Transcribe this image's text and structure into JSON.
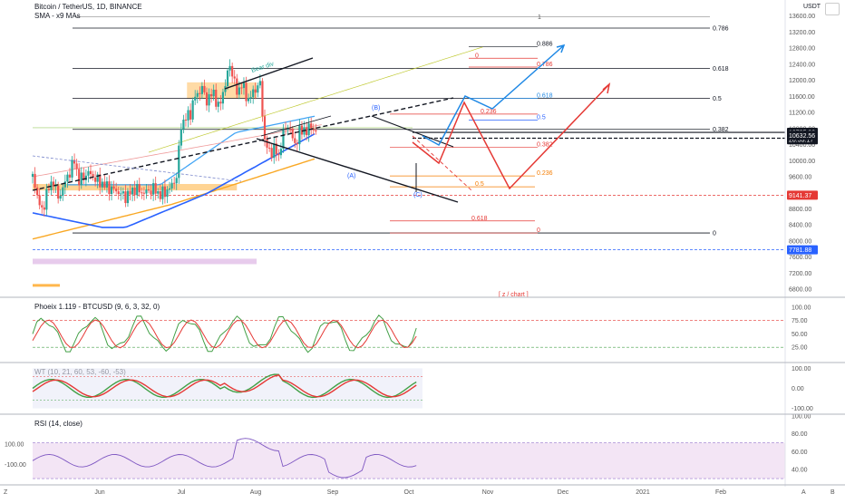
{
  "header": {
    "title": "Bitcoin / TetherUS, 1D, BINANCE",
    "indicator": "SMA - x9 MAs",
    "currency": "USDT"
  },
  "colors": {
    "up": "#26a69a",
    "down": "#ef5350",
    "sma_blue": "#2962ff",
    "sma_light": "#42a5f5",
    "sma_orange": "#f9a825",
    "fib_red": "#e53935",
    "fib_blue": "#1e88e5",
    "fib_orange": "#f57c00",
    "range_band": "#ffcc80",
    "pink_band": "#e1bee7",
    "rsi_bg": "#f3e5f5"
  },
  "chart_data": [
    {
      "type": "candlestick",
      "title": "Bitcoin / TetherUS, 1D, BINANCE",
      "x_ticks": [
        "Jun",
        "Jul",
        "Aug",
        "Sep",
        "Oct",
        "Nov",
        "Dec",
        "2021",
        "Feb"
      ],
      "y_ticks": [
        6800,
        7200,
        7600,
        8000,
        8400,
        8800,
        9200,
        9600,
        10000,
        10400,
        10800,
        11200,
        11600,
        12000,
        12400,
        12800,
        13200,
        13600
      ],
      "ylim": [
        6600,
        14000
      ],
      "price_labels": [
        {
          "text": "10705.90",
          "value": 10705.9,
          "color": "#131722"
        },
        {
          "text": "20:53:17",
          "value": 10520,
          "color": "#131722"
        },
        {
          "text": "10632.56",
          "value": 10632.56,
          "color": "#131722"
        },
        {
          "text": "9141.37",
          "value": 9141.37,
          "color": "#e53935"
        },
        {
          "text": "7781.88",
          "value": 7781.88,
          "color": "#2962ff"
        }
      ],
      "fib_black": [
        {
          "label": "0.886",
          "value": 14150
        },
        {
          "label": "1",
          "value": 13580
        },
        {
          "label": "0.786",
          "value": 13300
        },
        {
          "label": "0.618",
          "value": 12300
        },
        {
          "label": "0.5",
          "value": 11550
        },
        {
          "label": "0.382",
          "value": 10780
        },
        {
          "label": "0",
          "value": 8200
        }
      ],
      "fib_projection": [
        {
          "label": "0.886",
          "value": 12840
        },
        {
          "label": "0",
          "value": 12550
        },
        {
          "label": "0.786",
          "value": 12330
        },
        {
          "label": "0.618",
          "value": 11550
        },
        {
          "label": "0.5",
          "value": 11010
        },
        {
          "label": "0.236",
          "value": 11160
        },
        {
          "label": "0.382",
          "value": 10330
        },
        {
          "label": "0.236",
          "value": 9620
        },
        {
          "label": "0.5",
          "value": 9350
        },
        {
          "label": "0.618",
          "value": 8500
        },
        {
          "label": "0",
          "value": 8200
        }
      ],
      "annotations": [
        "Bear div",
        "(B)",
        "(A)",
        "(C)",
        "[ z / chart ]"
      ]
    },
    {
      "type": "line",
      "title": "Phoeix 1.119 - BTCUSD (9, 6, 3, 32, 0)",
      "y_ticks": [
        100,
        75,
        50,
        25
      ],
      "ylim": [
        0,
        115
      ]
    },
    {
      "type": "line",
      "title": "WT (10, 21, 60, 53, -60, -53)",
      "y_ticks": [
        100,
        0,
        -100
      ],
      "ylim": [
        -120,
        120
      ]
    },
    {
      "type": "line",
      "title": "RSI (14, close)",
      "y_ticks": [
        100,
        80,
        60,
        40
      ],
      "ylim": [
        25,
        100
      ],
      "left_ticks": [
        "100.00",
        "-100.00"
      ]
    }
  ],
  "bottom_axis": {
    "left_mark": "Z",
    "right_buttons": [
      "A",
      "B"
    ]
  }
}
